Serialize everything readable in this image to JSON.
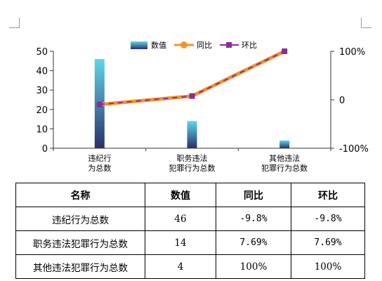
{
  "colors": {
    "bar_top": "#5fd6ea",
    "bar_bottom": "#2a2f6e",
    "line_yoy": "#f0952a",
    "line_mom": "#8e2a96",
    "axis": "#333333"
  },
  "chart_data": {
    "type": "bar",
    "categories": [
      [
        "违纪行",
        "为总数"
      ],
      [
        "职务违法",
        "犯罪行为总数"
      ],
      [
        "其他违法",
        "犯罪行为总数"
      ]
    ],
    "series": [
      {
        "name": "数值",
        "kind": "bar",
        "axis": "left",
        "values": [
          46,
          14,
          4
        ]
      },
      {
        "name": "同比",
        "kind": "line",
        "axis": "right",
        "values": [
          -9.8,
          7.69,
          100
        ]
      },
      {
        "name": "环比",
        "kind": "line",
        "axis": "right",
        "values": [
          -9.8,
          7.69,
          100
        ]
      }
    ],
    "ylim_left": [
      0,
      50
    ],
    "yticks_left": [
      "0",
      "10",
      "20",
      "30",
      "40",
      "50"
    ],
    "ylim_right": [
      -100,
      100
    ],
    "yticks_right": [
      "-100%",
      "0",
      "100%"
    ],
    "legend_position": "top-center",
    "grid": false
  },
  "table": {
    "headers": [
      "名称",
      "数值",
      "同比",
      "环比"
    ],
    "rows": [
      [
        "违纪行为总数",
        "46",
        "-9.8%",
        "-9.8%"
      ],
      [
        "职务违法犯罪行为总数",
        "14",
        "7.69%",
        "7.69%"
      ],
      [
        "其他违法犯罪行为总数",
        "4",
        "100%",
        "100%"
      ]
    ]
  }
}
